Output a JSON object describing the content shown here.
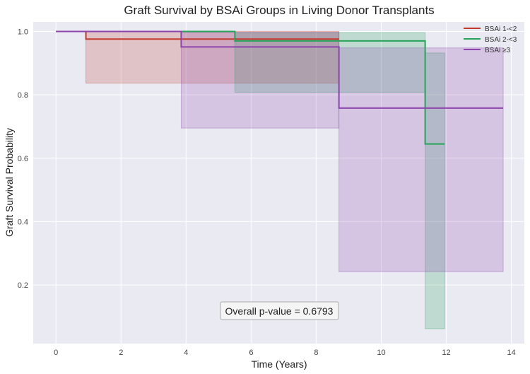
{
  "chart_data": {
    "type": "step",
    "title": "Graft Survival by BSAi Groups in Living Donor Transplants",
    "xlabel": "Time (Years)",
    "ylabel": "Graft Survival Probability",
    "xlim": [
      -0.7,
      14.4
    ],
    "ylim": [
      0.015,
      1.03
    ],
    "xticks": [
      0,
      2,
      4,
      6,
      8,
      10,
      12,
      14
    ],
    "yticks": [
      0.2,
      0.4,
      0.6,
      0.8,
      1.0
    ],
    "grid": true,
    "legend_position": "top-right",
    "annotation": "Overall p-value = 0.6793",
    "series": [
      {
        "name": "BSAi 1-<2",
        "color": "#c0392b",
        "steps": [
          [
            0,
            1.0
          ],
          [
            0.92,
            0.976
          ],
          [
            8.7,
            0.976
          ]
        ],
        "ci_bands": [
          {
            "x": [
              0.92,
              8.7
            ],
            "lower": 0.837,
            "upper": 1.0
          }
        ]
      },
      {
        "name": "BSAi 2-<3",
        "color": "#27a35a",
        "steps": [
          [
            0,
            1.0
          ],
          [
            5.5,
            0.97
          ],
          [
            11.35,
            0.645
          ],
          [
            11.95,
            0.645
          ]
        ],
        "ci_bands": [
          {
            "x": [
              5.5,
              11.35
            ],
            "lower": 0.808,
            "upper": 0.996
          },
          {
            "x": [
              11.35,
              11.95
            ],
            "lower": 0.062,
            "upper": 0.932
          }
        ]
      },
      {
        "name": "BSAi ≥3",
        "color": "#8e44ad",
        "steps": [
          [
            0,
            1.0
          ],
          [
            3.85,
            0.951
          ],
          [
            8.7,
            0.758
          ],
          [
            13.75,
            0.758
          ]
        ],
        "ci_bands": [
          {
            "x": [
              3.85,
              8.7
            ],
            "lower": 0.695,
            "upper": 0.997
          },
          {
            "x": [
              8.7,
              13.75
            ],
            "lower": 0.242,
            "upper": 0.948
          }
        ]
      }
    ]
  }
}
